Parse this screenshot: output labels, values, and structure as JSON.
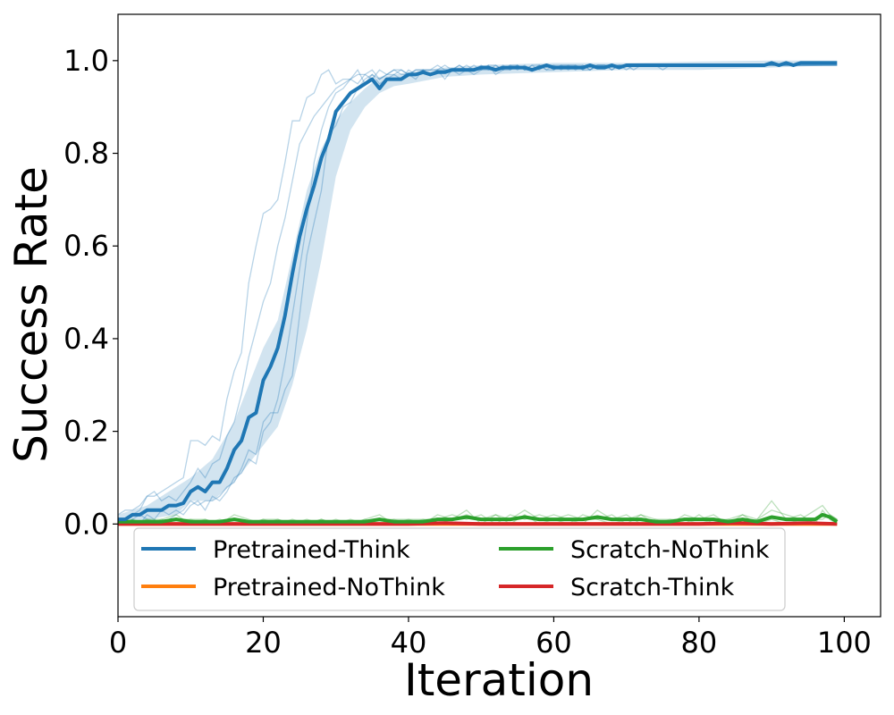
{
  "chart_data": {
    "type": "line",
    "xlabel": "Iteration",
    "ylabel": "Success Rate",
    "xlim": [
      0,
      105
    ],
    "ylim": [
      -0.2,
      1.1
    ],
    "xticks": [
      0,
      20,
      40,
      60,
      80,
      100
    ],
    "yticks": [
      0.0,
      0.2,
      0.4,
      0.6,
      0.8,
      1.0
    ],
    "xtick_labels": [
      "0",
      "20",
      "40",
      "60",
      "80",
      "100"
    ],
    "ytick_labels": [
      "0.0",
      "0.2",
      "0.4",
      "0.6",
      "0.8",
      "1.0"
    ],
    "grid": false,
    "legend": {
      "location": "bottom",
      "columns": 2
    },
    "band_x": [
      0,
      4,
      8,
      10,
      13,
      16,
      18,
      20,
      22,
      24,
      26,
      28,
      30,
      32,
      34,
      36,
      38,
      40,
      45,
      50,
      60,
      70,
      80,
      90,
      99
    ],
    "series": [
      {
        "name": "Pretrained-Think",
        "color": "#1f77b4",
        "x": [
          0,
          1,
          2,
          3,
          4,
          5,
          6,
          7,
          8,
          9,
          10,
          11,
          12,
          13,
          14,
          15,
          16,
          17,
          18,
          19,
          20,
          21,
          22,
          23,
          24,
          25,
          26,
          27,
          28,
          29,
          30,
          31,
          32,
          33,
          34,
          35,
          36,
          37,
          38,
          39,
          40,
          41,
          42,
          43,
          44,
          45,
          46,
          47,
          48,
          49,
          50,
          51,
          52,
          53,
          54,
          55,
          56,
          57,
          58,
          59,
          60,
          61,
          62,
          63,
          64,
          65,
          66,
          67,
          68,
          69,
          70,
          71,
          72,
          73,
          74,
          75,
          76,
          77,
          78,
          79,
          80,
          81,
          82,
          83,
          84,
          85,
          86,
          87,
          88,
          89,
          90,
          91,
          92,
          93,
          94,
          95,
          96,
          97,
          98,
          99
        ],
        "mean": [
          0.01,
          0.01,
          0.02,
          0.02,
          0.03,
          0.03,
          0.03,
          0.04,
          0.04,
          0.045,
          0.07,
          0.08,
          0.07,
          0.09,
          0.09,
          0.12,
          0.16,
          0.18,
          0.23,
          0.24,
          0.31,
          0.34,
          0.38,
          0.45,
          0.54,
          0.62,
          0.68,
          0.73,
          0.79,
          0.83,
          0.89,
          0.91,
          0.93,
          0.94,
          0.95,
          0.96,
          0.94,
          0.96,
          0.96,
          0.96,
          0.97,
          0.97,
          0.975,
          0.97,
          0.975,
          0.975,
          0.98,
          0.98,
          0.98,
          0.98,
          0.985,
          0.985,
          0.98,
          0.985,
          0.985,
          0.985,
          0.985,
          0.98,
          0.985,
          0.99,
          0.985,
          0.985,
          0.985,
          0.985,
          0.985,
          0.99,
          0.985,
          0.985,
          0.99,
          0.985,
          0.99,
          0.99,
          0.99,
          0.99,
          0.99,
          0.99,
          0.99,
          0.99,
          0.99,
          0.99,
          0.99,
          0.99,
          0.99,
          0.99,
          0.99,
          0.99,
          0.99,
          0.99,
          0.99,
          0.99,
          0.995,
          0.99,
          0.995,
          0.99,
          0.995,
          0.995,
          0.995,
          0.995,
          0.995,
          0.995
        ],
        "band_lower": [
          0.0,
          0.01,
          0.02,
          0.05,
          0.05,
          0.09,
          0.13,
          0.17,
          0.21,
          0.3,
          0.42,
          0.57,
          0.75,
          0.85,
          0.9,
          0.93,
          0.945,
          0.95,
          0.965,
          0.97,
          0.975,
          0.98,
          0.98,
          0.985,
          0.99
        ],
        "band_upper": [
          0.02,
          0.04,
          0.08,
          0.1,
          0.14,
          0.22,
          0.3,
          0.38,
          0.44,
          0.58,
          0.72,
          0.81,
          0.87,
          0.91,
          0.94,
          0.965,
          0.97,
          0.975,
          0.985,
          0.99,
          0.995,
          0.995,
          0.998,
          1.0,
          1.0
        ],
        "runs": [
          [
            0.0,
            0.01,
            0.02,
            0.03,
            0.06,
            0.06,
            0.07,
            0.08,
            0.09,
            0.1,
            0.18,
            0.18,
            0.17,
            0.19,
            0.18,
            0.27,
            0.33,
            0.37,
            0.52,
            0.6,
            0.67,
            0.68,
            0.7,
            0.78,
            0.87,
            0.87,
            0.92,
            0.93,
            0.97,
            0.98,
            0.95,
            0.96,
            0.96,
            0.98,
            0.95,
            0.97,
            0.96,
            0.97,
            0.98,
            0.97,
            0.97,
            0.98,
            0.98,
            0.97,
            0.98,
            0.98,
            0.98,
            0.98,
            0.99,
            0.98,
            0.98,
            0.98,
            0.98,
            0.99,
            0.98,
            0.99,
            0.98,
            0.98,
            0.99,
            0.98,
            0.98,
            0.99,
            0.98,
            0.99,
            0.98,
            0.98,
            0.99,
            0.99,
            0.98,
            0.99,
            0.98,
            0.99,
            0.99,
            0.99,
            0.99,
            0.99,
            0.99,
            0.99,
            0.99,
            0.99,
            0.99,
            0.99,
            0.99,
            0.99,
            0.99,
            0.99,
            0.99,
            0.99,
            0.99,
            0.99,
            0.99,
            0.99,
            0.99,
            0.99,
            0.99,
            0.99,
            0.99,
            0.99,
            0.99,
            0.99
          ],
          [
            0.01,
            0.0,
            0.01,
            0.02,
            0.01,
            0.01,
            0.0,
            0.01,
            0.02,
            0.03,
            0.05,
            0.04,
            0.05,
            0.05,
            0.06,
            0.08,
            0.09,
            0.12,
            0.16,
            0.15,
            0.22,
            0.24,
            0.24,
            0.29,
            0.32,
            0.45,
            0.58,
            0.65,
            0.72,
            0.84,
            0.86,
            0.9,
            0.91,
            0.94,
            0.96,
            0.97,
            0.95,
            0.96,
            0.97,
            0.98,
            0.97,
            0.96,
            0.98,
            0.97,
            0.98,
            0.96,
            0.98,
            0.97,
            0.98,
            0.97,
            0.98,
            0.99,
            0.97,
            0.98,
            0.99,
            0.98,
            0.99,
            0.98,
            0.99,
            0.99,
            0.98,
            0.99,
            0.99,
            0.98,
            0.99,
            0.98,
            0.99,
            0.99,
            0.98,
            0.99,
            0.99,
            0.98,
            0.99,
            0.99,
            0.99,
            0.98,
            0.99,
            0.99,
            0.99,
            0.99,
            0.99,
            0.99,
            0.99,
            0.99,
            0.99,
            0.99,
            0.99,
            0.99,
            0.99,
            0.99,
            0.99,
            0.99,
            0.99,
            0.99,
            0.99,
            0.99,
            0.99,
            0.99,
            0.99,
            0.99
          ],
          [
            0.02,
            0.03,
            0.03,
            0.04,
            0.06,
            0.07,
            0.05,
            0.06,
            0.05,
            0.07,
            0.09,
            0.12,
            0.1,
            0.13,
            0.14,
            0.19,
            0.22,
            0.28,
            0.36,
            0.42,
            0.48,
            0.52,
            0.6,
            0.66,
            0.74,
            0.82,
            0.85,
            0.88,
            0.9,
            0.92,
            0.94,
            0.95,
            0.96,
            0.97,
            0.97,
            0.96,
            0.98,
            0.97,
            0.98,
            0.98,
            0.97,
            0.98,
            0.98,
            0.98,
            0.98,
            0.99,
            0.98,
            0.99,
            0.98,
            0.99,
            0.98,
            0.99,
            0.99,
            0.98,
            0.99,
            0.99,
            0.98,
            0.99,
            0.99,
            0.98,
            0.99,
            0.99,
            0.99,
            0.99,
            0.98,
            0.99,
            0.99,
            0.99,
            0.99,
            0.99,
            0.99,
            0.99,
            0.99,
            0.99,
            0.99,
            0.99,
            0.99,
            0.99,
            0.99,
            0.99,
            0.99,
            0.99,
            0.99,
            0.99,
            0.99,
            0.99,
            0.99,
            0.99,
            0.99,
            0.99,
            0.99,
            0.99,
            0.99,
            0.99,
            0.99,
            0.99,
            0.99,
            0.99,
            0.99,
            0.99
          ],
          [
            0.0,
            0.0,
            0.01,
            0.0,
            0.02,
            0.01,
            0.03,
            0.02,
            0.03,
            0.02,
            0.04,
            0.05,
            0.03,
            0.06,
            0.05,
            0.07,
            0.1,
            0.11,
            0.14,
            0.13,
            0.2,
            0.22,
            0.27,
            0.35,
            0.45,
            0.55,
            0.65,
            0.78,
            0.85,
            0.9,
            0.93,
            0.94,
            0.96,
            0.95,
            0.97,
            0.98,
            0.96,
            0.97,
            0.97,
            0.96,
            0.98,
            0.97,
            0.98,
            0.98,
            0.99,
            0.98,
            0.98,
            0.99,
            0.98,
            0.98,
            0.99,
            0.98,
            0.99,
            0.98,
            0.98,
            0.99,
            0.98,
            0.99,
            0.98,
            0.99,
            0.99,
            0.98,
            0.99,
            0.99,
            0.99,
            0.98,
            0.99,
            0.99,
            0.99,
            0.99,
            0.99,
            0.99,
            0.99,
            0.99,
            0.99,
            0.99,
            0.99,
            0.99,
            0.99,
            0.99,
            0.99,
            0.99,
            0.99,
            0.99,
            0.99,
            0.99,
            0.99,
            0.99,
            0.99,
            0.99,
            0.99,
            0.99,
            0.99,
            0.99,
            0.99,
            0.99,
            0.99,
            0.99,
            0.99,
            0.99
          ]
        ]
      },
      {
        "name": "Pretrained-NoThink",
        "color": "#ff7f0e",
        "x": [
          0,
          99
        ],
        "mean": [
          0.0,
          0.0
        ]
      },
      {
        "name": "Scratch-NoThink",
        "color": "#2ca02c",
        "x": [
          0,
          2,
          4,
          6,
          8,
          10,
          12,
          14,
          16,
          18,
          20,
          22,
          24,
          26,
          28,
          30,
          32,
          34,
          36,
          38,
          40,
          42,
          44,
          46,
          48,
          50,
          52,
          54,
          56,
          58,
          60,
          62,
          64,
          66,
          68,
          70,
          72,
          74,
          76,
          78,
          80,
          82,
          84,
          86,
          88,
          90,
          92,
          94,
          96,
          97,
          98,
          99
        ],
        "mean": [
          0.005,
          0.005,
          0.005,
          0.005,
          0.01,
          0.005,
          0.005,
          0.005,
          0.01,
          0.005,
          0.005,
          0.005,
          0.005,
          0.005,
          0.005,
          0.005,
          0.005,
          0.005,
          0.01,
          0.005,
          0.005,
          0.005,
          0.01,
          0.01,
          0.015,
          0.01,
          0.01,
          0.01,
          0.015,
          0.01,
          0.01,
          0.01,
          0.01,
          0.015,
          0.01,
          0.01,
          0.01,
          0.005,
          0.005,
          0.01,
          0.01,
          0.01,
          0.005,
          0.01,
          0.005,
          0.015,
          0.01,
          0.01,
          0.01,
          0.02,
          0.015,
          0.005
        ],
        "runs": [
          [
            0.0,
            0.01,
            0.0,
            0.01,
            0.02,
            0.0,
            0.01,
            0.0,
            0.02,
            0.01,
            0.0,
            0.01,
            0.0,
            0.01,
            0.0,
            0.01,
            0.0,
            0.01,
            0.02,
            0.0,
            0.01,
            0.0,
            0.02,
            0.01,
            0.03,
            0.0,
            0.02,
            0.01,
            0.03,
            0.01,
            0.02,
            0.01,
            0.0,
            0.03,
            0.01,
            0.02,
            0.0,
            0.01,
            0.0,
            0.02,
            0.01,
            0.02,
            0.0,
            0.02,
            0.01,
            0.03,
            0.02,
            0.01,
            0.03,
            0.04,
            0.02,
            0.01
          ],
          [
            0.01,
            0.0,
            0.01,
            0.0,
            0.01,
            0.01,
            0.0,
            0.01,
            0.0,
            0.0,
            0.01,
            0.0,
            0.01,
            0.0,
            0.01,
            0.0,
            0.01,
            0.0,
            0.01,
            0.01,
            0.0,
            0.01,
            0.01,
            0.02,
            0.01,
            0.02,
            0.0,
            0.02,
            0.01,
            0.02,
            0.01,
            0.0,
            0.02,
            0.01,
            0.02,
            0.0,
            0.02,
            0.01,
            0.01,
            0.0,
            0.02,
            0.0,
            0.01,
            0.0,
            0.01,
            0.05,
            0.01,
            0.02,
            0.0,
            0.03,
            0.01,
            0.0
          ],
          [
            0.0,
            0.0,
            0.01,
            0.01,
            0.0,
            0.01,
            0.01,
            0.0,
            0.01,
            0.0,
            0.01,
            0.01,
            0.0,
            0.0,
            0.01,
            0.0,
            0.0,
            0.01,
            0.0,
            0.01,
            0.01,
            0.01,
            0.0,
            0.01,
            0.02,
            0.01,
            0.02,
            0.0,
            0.02,
            0.0,
            0.01,
            0.02,
            0.01,
            0.01,
            0.0,
            0.01,
            0.02,
            0.0,
            0.01,
            0.01,
            0.0,
            0.01,
            0.01,
            0.02,
            0.0,
            0.01,
            0.0,
            0.01,
            0.01,
            0.01,
            0.02,
            0.01
          ]
        ]
      },
      {
        "name": "Scratch-Think",
        "color": "#d62728",
        "x": [
          0,
          5,
          10,
          15,
          20,
          25,
          30,
          35,
          40,
          45,
          50,
          55,
          60,
          65,
          70,
          75,
          80,
          85,
          90,
          95,
          99
        ],
        "mean": [
          0.0,
          0.0,
          0.0,
          0.0,
          0.0,
          0.0,
          0.0,
          0.0,
          0.0,
          0.002,
          0.0,
          0.0,
          0.0,
          0.0,
          0.0,
          0.0,
          0.0,
          0.002,
          0.0,
          0.002,
          0.0
        ]
      }
    ]
  }
}
